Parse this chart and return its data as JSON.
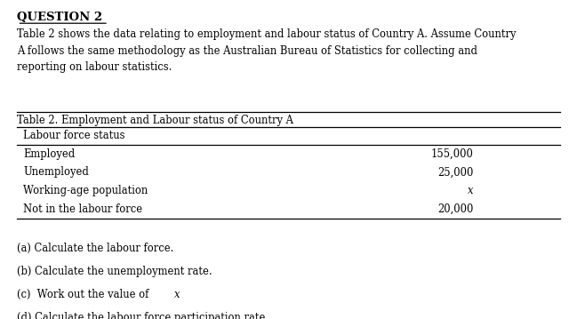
{
  "title": "QUESTION 2",
  "intro_text": "Table 2 shows the data relating to employment and labour status of Country A. Assume Country\nA follows the same methodology as the Australian Bureau of Statistics for collecting and\nreporting on labour statistics.",
  "table_title": "Table 2. Employment and Labour status of Country A",
  "table_header": "Labour force status",
  "table_rows": [
    {
      "label": "Employed",
      "value": "155,000"
    },
    {
      "label": "Unemployed",
      "value": "25,000"
    },
    {
      "label": "Working-age population",
      "value": "x"
    },
    {
      "label": "Not in the labour force",
      "value": "20,000"
    }
  ],
  "questions": [
    "(a) Calculate the labour force.",
    "(b) Calculate the unemployment rate.",
    "(c)  Work out the value of x",
    "(d) Calculate the labour force participation rate"
  ],
  "bg_color": "#ffffff",
  "text_color": "#000000",
  "font_family": "serif"
}
